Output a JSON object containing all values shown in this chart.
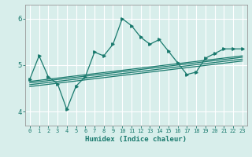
{
  "title": "",
  "xlabel": "Humidex (Indice chaleur)",
  "bg_color": "#d8eeeb",
  "line_color": "#1a7a6e",
  "grid_color": "#ffffff",
  "xlim": [
    -0.5,
    23.5
  ],
  "ylim": [
    3.7,
    6.3
  ],
  "yticks": [
    4,
    5,
    6
  ],
  "xticks": [
    0,
    1,
    2,
    3,
    4,
    5,
    6,
    7,
    8,
    9,
    10,
    11,
    12,
    13,
    14,
    15,
    16,
    17,
    18,
    19,
    20,
    21,
    22,
    23
  ],
  "line1_x": [
    0,
    1,
    2,
    3,
    4,
    5,
    6,
    7,
    8,
    9,
    10,
    11,
    12,
    13,
    14,
    15,
    16,
    17,
    18,
    19,
    20,
    21,
    22,
    23
  ],
  "line1_y": [
    4.7,
    5.2,
    4.75,
    4.6,
    4.05,
    4.55,
    4.75,
    5.28,
    5.2,
    5.45,
    6.0,
    5.85,
    5.6,
    5.45,
    5.55,
    5.3,
    5.05,
    4.8,
    4.85,
    5.15,
    5.25,
    5.35,
    5.35,
    5.35
  ],
  "line2_x": [
    0,
    23
  ],
  "line2_y": [
    4.65,
    5.2
  ],
  "line3_x": [
    0,
    23
  ],
  "line3_y": [
    4.62,
    5.17
  ],
  "line4_x": [
    0,
    23
  ],
  "line4_y": [
    4.58,
    5.13
  ],
  "line5_x": [
    0,
    23
  ],
  "line5_y": [
    4.54,
    5.09
  ]
}
